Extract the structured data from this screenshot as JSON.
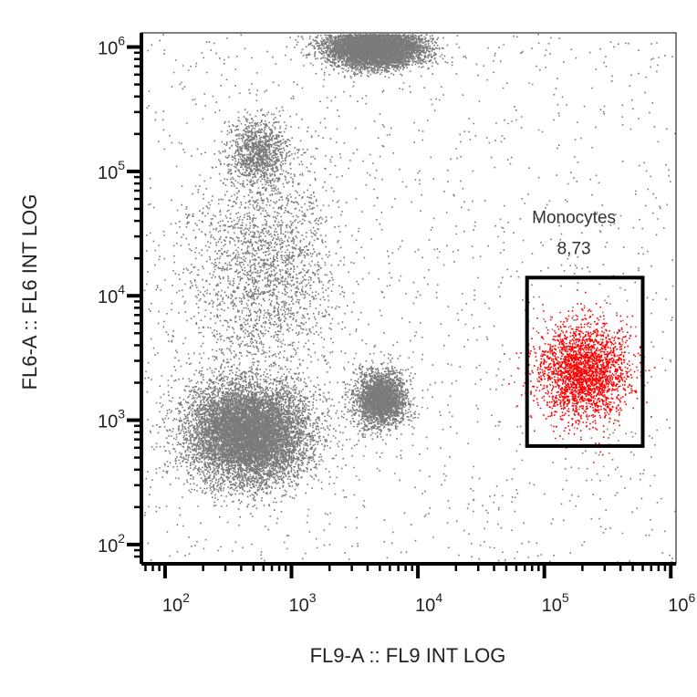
{
  "chart_data": {
    "type": "scatter",
    "xlabel": "FL9-A :: FL9 INT LOG",
    "ylabel": "FL6-A :: FL6 INT LOG",
    "xscale": "log",
    "yscale": "log",
    "xlim": [
      65,
      1100000
    ],
    "ylim": [
      70,
      1300000
    ],
    "xticks": [
      {
        "base": "10",
        "exp": "2",
        "value": 100
      },
      {
        "base": "10",
        "exp": "3",
        "value": 1000
      },
      {
        "base": "10",
        "exp": "4",
        "value": 10000
      },
      {
        "base": "10",
        "exp": "5",
        "value": 100000
      },
      {
        "base": "10",
        "exp": "6",
        "value": 1000000
      }
    ],
    "yticks": [
      {
        "base": "10",
        "exp": "2",
        "value": 100
      },
      {
        "base": "10",
        "exp": "3",
        "value": 1000
      },
      {
        "base": "10",
        "exp": "4",
        "value": 10000
      },
      {
        "base": "10",
        "exp": "5",
        "value": 100000
      },
      {
        "base": "10",
        "exp": "6",
        "value": 1000000
      }
    ],
    "colors": {
      "events": "#7a7a7a",
      "gated_events": "#ff0000",
      "gate": "#000000",
      "axes": "#000000"
    },
    "populations": [
      {
        "name": "",
        "color": "events",
        "x_center": 450,
        "y_center": 800,
        "x_spread": 0.24,
        "y_spread": 0.2,
        "count": 9000
      },
      {
        "name": "",
        "color": "events",
        "x_center": 5000,
        "y_center": 1500,
        "x_spread": 0.1,
        "y_spread": 0.11,
        "count": 2600
      },
      {
        "name": "",
        "color": "events",
        "x_center": 4500,
        "y_center": 1000000,
        "x_spread": 0.19,
        "y_spread": 0.08,
        "count": 6500
      },
      {
        "name": "",
        "color": "events",
        "x_center": 550,
        "y_center": 140000,
        "x_spread": 0.12,
        "y_spread": 0.14,
        "count": 1100
      },
      {
        "name": "",
        "color": "events",
        "x_center": 600,
        "y_center": 15000,
        "x_spread": 0.3,
        "y_spread": 0.45,
        "count": 2200
      },
      {
        "name": "Monocytes",
        "color": "gated_events",
        "x_center": 200000,
        "y_center": 2500,
        "x_spread": 0.18,
        "y_spread": 0.2,
        "count": 2400
      }
    ],
    "gates": [
      {
        "name": "Monocytes",
        "percent": "8,73",
        "x_range": [
          73000,
          600000
        ],
        "y_range": [
          620,
          14000
        ]
      }
    ]
  }
}
